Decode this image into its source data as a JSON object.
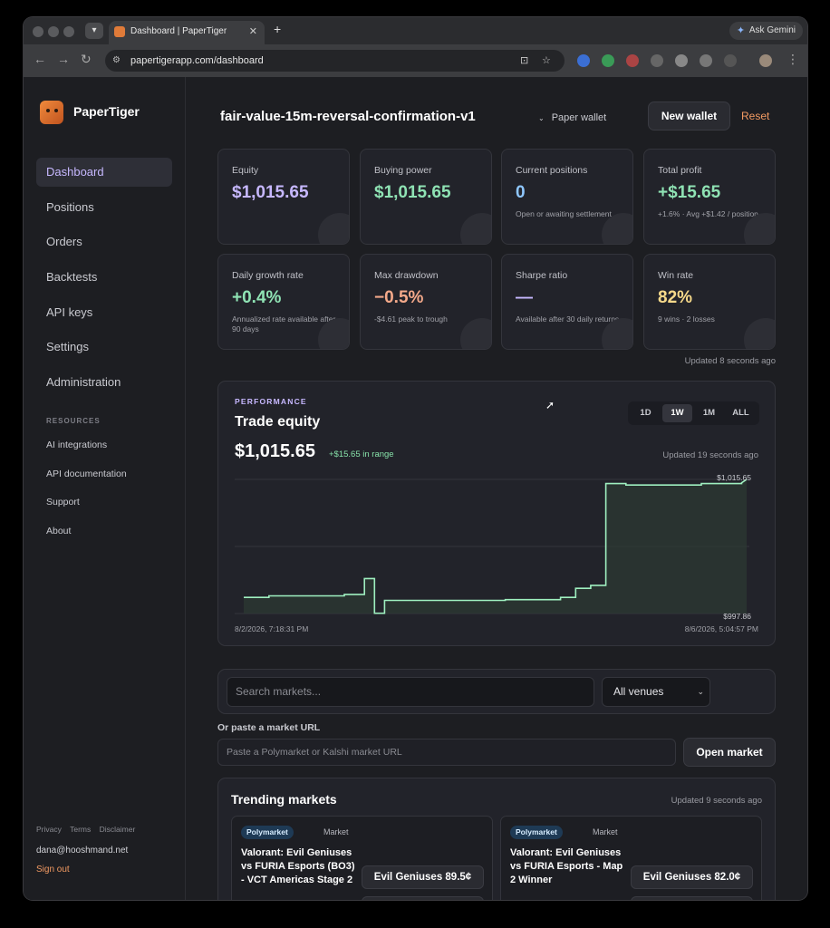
{
  "browser": {
    "tab_title": "Dashboard | PaperTiger",
    "url": "papertigerapp.com/dashboard",
    "gemini_label": "Ask Gemini"
  },
  "sidebar": {
    "brand": "PaperTiger",
    "nav": [
      "Dashboard",
      "Positions",
      "Orders",
      "Backtests",
      "API keys",
      "Settings",
      "Administration"
    ],
    "active_index": 0,
    "resources_heading": "RESOURCES",
    "resources": [
      "AI integrations",
      "API documentation",
      "Support",
      "About"
    ],
    "footer_links": [
      "Privacy",
      "Terms",
      "Disclaimer"
    ],
    "email": "dana@hooshmand.net",
    "sign_out": "Sign out"
  },
  "header": {
    "wallet_name": "fair-value-15m-reversal-confirmation-v1",
    "wallet_type": "Paper wallet",
    "new_wallet": "New wallet",
    "reset": "Reset"
  },
  "stats": [
    {
      "label": "Equity",
      "value": "$1,015.65",
      "sub": "",
      "color": "#c7b8ff"
    },
    {
      "label": "Buying power",
      "value": "$1,015.65",
      "sub": "",
      "color": "#8fe3b4"
    },
    {
      "label": "Current positions",
      "value": "0",
      "sub": "Open or awaiting settlement",
      "color": "#8fc7ff"
    },
    {
      "label": "Total profit",
      "value": "+$15.65",
      "sub": "+1.6% · Avg +$1.42 / position",
      "color": "#8fe3b4"
    },
    {
      "label": "Daily growth rate",
      "value": "+0.4%",
      "sub": "Annualized rate available after 90 days",
      "color": "#8fe3b4"
    },
    {
      "label": "Max drawdown",
      "value": "−0.5%",
      "sub": "-$4.61 peak to trough",
      "color": "#f4a98a"
    },
    {
      "label": "Sharpe ratio",
      "value": "—",
      "sub": "Available after 30 daily returns",
      "color": "#c7b8ff"
    },
    {
      "label": "Win rate",
      "value": "82%",
      "sub": "9 wins · 2 losses",
      "color": "#f6d98a"
    }
  ],
  "stats_updated": "Updated 8 seconds ago",
  "performance": {
    "tag": "PERFORMANCE",
    "title": "Trade equity",
    "value": "$1,015.65",
    "delta": "+$15.65 in range",
    "ranges": [
      "1D",
      "1W",
      "1M",
      "ALL"
    ],
    "active_range": "1W",
    "updated": "Updated 19 seconds ago"
  },
  "chart_data": {
    "type": "area",
    "max_label": "$1,015.65",
    "min_label": "$997.86",
    "x_start_label": "8/2/2026, 7:18:31 PM",
    "x_end_label": "8/6/2026, 5:04:57 PM",
    "ylim": [
      997.86,
      1015.65
    ],
    "x": [
      0,
      0.05,
      0.05,
      0.2,
      0.2,
      0.24,
      0.24,
      0.26,
      0.26,
      0.28,
      0.28,
      0.52,
      0.52,
      0.63,
      0.63,
      0.66,
      0.66,
      0.69,
      0.69,
      0.72,
      0.72,
      0.76,
      0.76,
      0.91,
      0.91,
      0.99,
      0.99,
      1.0
    ],
    "y": [
      1000.0,
      1000.0,
      1000.2,
      1000.2,
      1000.4,
      1000.4,
      1002.5,
      1002.5,
      997.9,
      997.9,
      999.6,
      999.6,
      999.7,
      999.7,
      1000.0,
      1000.0,
      1001.2,
      1001.2,
      1001.6,
      1001.6,
      1015.1,
      1015.1,
      1014.9,
      1014.9,
      1015.1,
      1015.1,
      1015.2,
      1015.65
    ]
  },
  "search": {
    "placeholder": "Search markets...",
    "venue": "All venues",
    "paste_label": "Or paste a market URL",
    "paste_placeholder": "Paste a Polymarket or Kalshi market URL",
    "open_button": "Open market"
  },
  "trending": {
    "title": "Trending markets",
    "updated": "Updated 9 seconds ago",
    "markets": [
      {
        "venue": "Polymarket",
        "type": "Market",
        "title": "Valorant: Evil Geniuses vs FURIA Esports (BO3) - VCT Americas Stage 2",
        "outcome": "Evil Geniuses 89.5¢"
      },
      {
        "venue": "Polymarket",
        "type": "Market",
        "title": "Valorant: Evil Geniuses vs FURIA Esports - Map 2 Winner",
        "outcome": "Evil Geniuses 82.0¢"
      }
    ]
  }
}
